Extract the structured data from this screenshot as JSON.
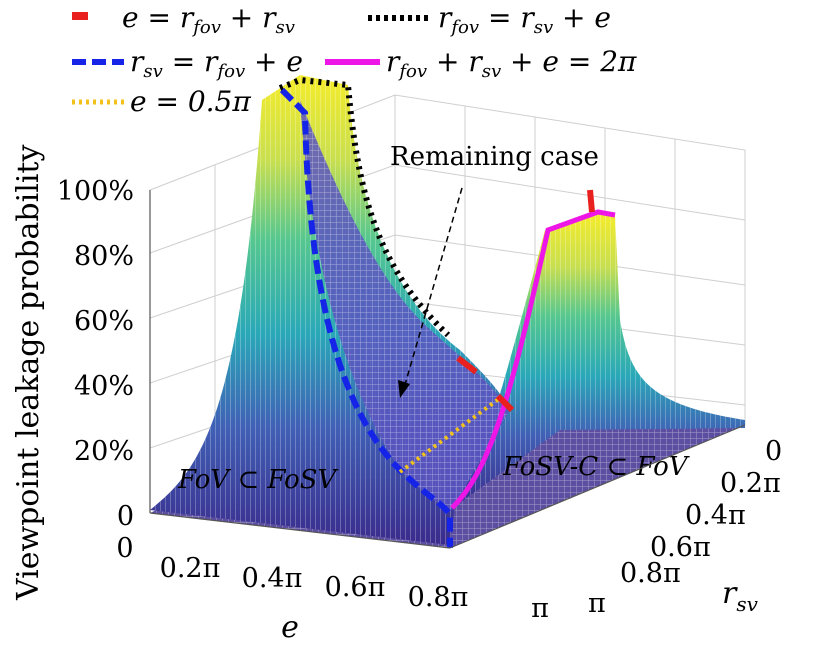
{
  "chart_data": {
    "type": "surface3d",
    "title": "",
    "xlabel": "e",
    "ylabel": "r_sv",
    "zlabel": "Viewpoint leakage probability",
    "x_ticks": [
      "0",
      "0.2π",
      "0.4π",
      "0.6π",
      "0.8π",
      "π"
    ],
    "y_ticks": [
      "0",
      "0.2π",
      "0.4π",
      "0.6π",
      "0.8π",
      "π"
    ],
    "z_ticks": [
      "0",
      "20%",
      "40%",
      "60%",
      "80%",
      "100%"
    ],
    "xlim": [
      0,
      3.1416
    ],
    "ylim": [
      0,
      3.1416
    ],
    "zlim": [
      0,
      1
    ],
    "colormap": [
      "#3a2b8c",
      "#3f67b5",
      "#2aa8b8",
      "#56c78f",
      "#c9df4f",
      "#f5ec2a"
    ],
    "legend": [
      {
        "label": "e = r_fov + r_sv",
        "color": "#e8201e",
        "style": "solid"
      },
      {
        "label": "r_fov = r_sv + e",
        "color": "#000000",
        "style": "dotted"
      },
      {
        "label": "r_sv = r_fov + e",
        "color": "#1624e8",
        "style": "dashed"
      },
      {
        "label": "r_fov + r_sv + e = 2π",
        "color": "#ee16e6",
        "style": "solid"
      },
      {
        "label": "e = 0.5π",
        "color": "#f2c21a",
        "style": "dotted"
      }
    ],
    "legend_position": "top-left",
    "annotations": [
      "Remaining case"
    ],
    "regions": [
      "FoV ⊂ FoSV",
      "FoSV-C ⊂ FoV"
    ],
    "series": [
      {
        "name": "surface peak at e ≈ 0.1π, r_sv ≈ π",
        "x": 0.314,
        "y": 3.1416,
        "z": 1.0
      },
      {
        "name": "surface peak at e ≈ π, r_sv ≈ 0.2π",
        "x": 3.1416,
        "y": 0.628,
        "z": 0.93
      },
      {
        "name": "remaining case plateau",
        "x": 1.571,
        "y": 1.571,
        "z": 0.38
      }
    ]
  },
  "legend_text": {
    "l1": [
      "e = r",
      "fov",
      " + r",
      "sv"
    ],
    "l2": [
      "r",
      "fov",
      " = r",
      "sv",
      " + e"
    ],
    "l3": [
      "r",
      "sv",
      " = r",
      "fov",
      " + e"
    ],
    "l4": [
      "r",
      "fov",
      " + r",
      "sv",
      " + e = 2π"
    ],
    "l5": [
      "e = 0.5π"
    ]
  },
  "axis_text": {
    "xlab_main": "e",
    "ylab_main": "r",
    "ylab_sub": "sv"
  }
}
